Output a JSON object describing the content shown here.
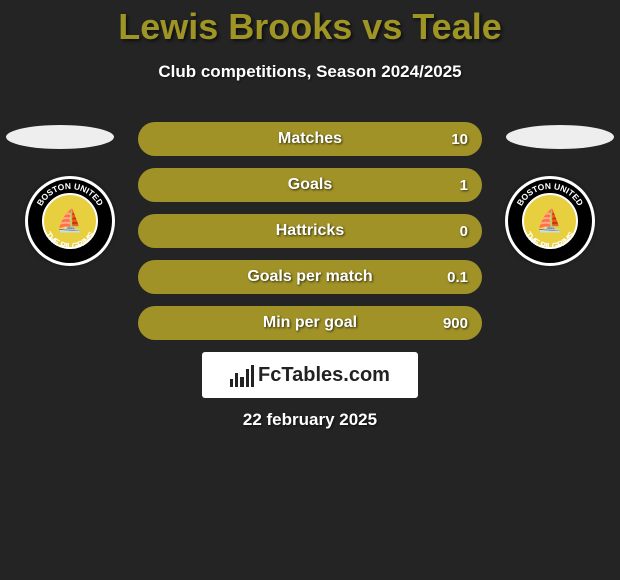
{
  "title": {
    "text": "Lewis Brooks vs Teale",
    "color": "#9e9525",
    "fontsize": 36
  },
  "subtitle": "Club competitions, Season 2024/2025",
  "colors": {
    "left": "#a09227",
    "right": "#818181",
    "background": "#242424",
    "ellipse": "#eeeeee"
  },
  "badge": {
    "top_text": "BOSTON UNITED",
    "bottom_text": "THE PILGRIMS",
    "inner_bg": "#e7cf3f",
    "ring_bg": "#000000",
    "outer_bg": "#ffffff"
  },
  "stats": [
    {
      "label": "Matches",
      "left_val": "",
      "right_val": "10",
      "left_pct": 100,
      "right_pct": 0
    },
    {
      "label": "Goals",
      "left_val": "",
      "right_val": "1",
      "left_pct": 100,
      "right_pct": 0
    },
    {
      "label": "Hattricks",
      "left_val": "",
      "right_val": "0",
      "left_pct": 100,
      "right_pct": 0
    },
    {
      "label": "Goals per match",
      "left_val": "",
      "right_val": "0.1",
      "left_pct": 100,
      "right_pct": 0
    },
    {
      "label": "Min per goal",
      "left_val": "",
      "right_val": "900",
      "left_pct": 100,
      "right_pct": 0
    }
  ],
  "brand": "FcTables.com",
  "date": "22 february 2025"
}
